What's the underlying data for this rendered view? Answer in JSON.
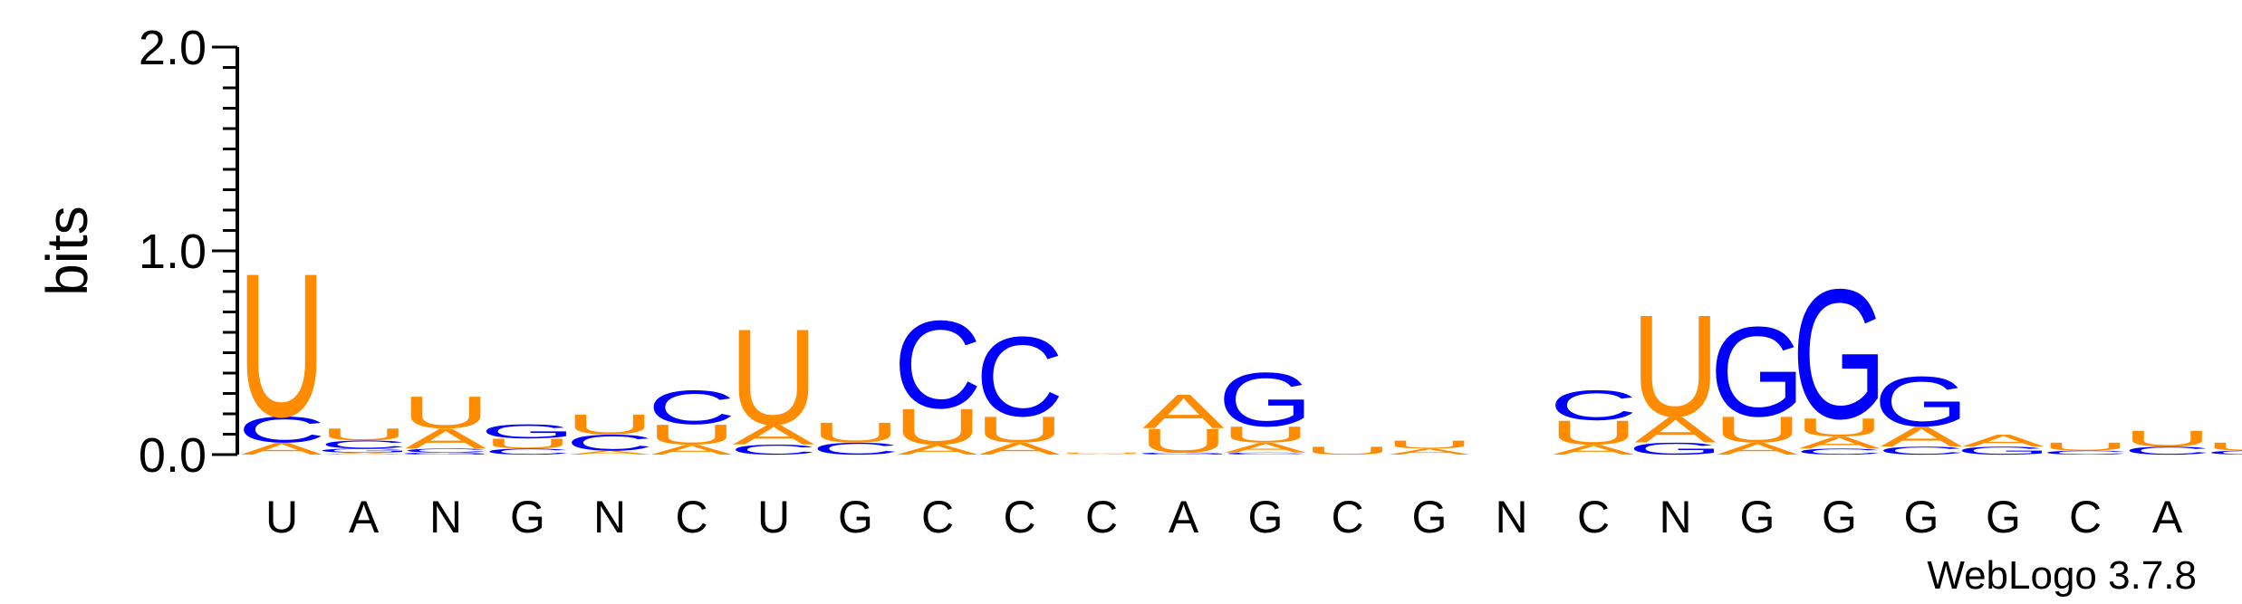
{
  "chart_data": {
    "type": "sequence-logo",
    "ylabel": "bits",
    "ylim": [
      0.0,
      2.0
    ],
    "yticks": [
      "0.0",
      "1.0",
      "2.0"
    ],
    "credit": "WebLogo 3.7.8",
    "colors": {
      "U": "#ff8c00",
      "A": "#ff8c00",
      "C": "#0000ff",
      "G": "#0000ff"
    },
    "positions": [
      {
        "label": "U",
        "stack": [
          {
            "letter": "A",
            "h": 0.06
          },
          {
            "letter": "C",
            "h": 0.13
          },
          {
            "letter": "U",
            "h": 0.72
          }
        ]
      },
      {
        "label": "A",
        "stack": [
          {
            "letter": "A",
            "h": 0.01
          },
          {
            "letter": "G",
            "h": 0.02
          },
          {
            "letter": "C",
            "h": 0.04
          },
          {
            "letter": "U",
            "h": 0.06
          }
        ]
      },
      {
        "label": "N",
        "stack": [
          {
            "letter": "G",
            "h": 0.01
          },
          {
            "letter": "C",
            "h": 0.02
          },
          {
            "letter": "A",
            "h": 0.1
          },
          {
            "letter": "U",
            "h": 0.16
          }
        ]
      },
      {
        "label": "G",
        "stack": [
          {
            "letter": "C",
            "h": 0.03
          },
          {
            "letter": "U",
            "h": 0.05
          },
          {
            "letter": "G",
            "h": 0.07
          }
        ]
      },
      {
        "label": "N",
        "stack": [
          {
            "letter": "A",
            "h": 0.02
          },
          {
            "letter": "C",
            "h": 0.08
          },
          {
            "letter": "U",
            "h": 0.1
          }
        ]
      },
      {
        "label": "C",
        "stack": [
          {
            "letter": "A",
            "h": 0.05
          },
          {
            "letter": "U",
            "h": 0.1
          },
          {
            "letter": "C",
            "h": 0.17
          }
        ]
      },
      {
        "label": "U",
        "stack": [
          {
            "letter": "C",
            "h": 0.05
          },
          {
            "letter": "A",
            "h": 0.1
          },
          {
            "letter": "U",
            "h": 0.48
          }
        ]
      },
      {
        "label": "G",
        "stack": [
          {
            "letter": "C",
            "h": 0.06
          },
          {
            "letter": "U",
            "h": 0.1
          }
        ]
      },
      {
        "label": "C",
        "stack": [
          {
            "letter": "A",
            "h": 0.05
          },
          {
            "letter": "U",
            "h": 0.18
          },
          {
            "letter": "C",
            "h": 0.44
          }
        ]
      },
      {
        "label": "C",
        "stack": [
          {
            "letter": "A",
            "h": 0.06
          },
          {
            "letter": "U",
            "h": 0.13
          },
          {
            "letter": "C",
            "h": 0.4
          }
        ]
      },
      {
        "label": "C",
        "stack": [
          {
            "letter": "A",
            "h": 0.005
          },
          {
            "letter": "U",
            "h": 0.005
          }
        ]
      },
      {
        "label": "A",
        "stack": [
          {
            "letter": "G",
            "h": 0.01
          },
          {
            "letter": "U",
            "h": 0.12
          },
          {
            "letter": "A",
            "h": 0.17
          }
        ]
      },
      {
        "label": "G",
        "stack": [
          {
            "letter": "C",
            "h": 0.01
          },
          {
            "letter": "A",
            "h": 0.05
          },
          {
            "letter": "U",
            "h": 0.08
          },
          {
            "letter": "G",
            "h": 0.27
          }
        ]
      },
      {
        "label": "C",
        "stack": [
          {
            "letter": "U",
            "h": 0.04
          }
        ]
      },
      {
        "label": "G",
        "stack": [
          {
            "letter": "A",
            "h": 0.03
          },
          {
            "letter": "U",
            "h": 0.04
          }
        ]
      },
      {
        "label": "N",
        "stack": []
      },
      {
        "label": "C",
        "stack": [
          {
            "letter": "A",
            "h": 0.05
          },
          {
            "letter": "U",
            "h": 0.12
          },
          {
            "letter": "C",
            "h": 0.15
          }
        ]
      },
      {
        "label": "N",
        "stack": [
          {
            "letter": "G",
            "h": 0.06
          },
          {
            "letter": "A",
            "h": 0.13
          },
          {
            "letter": "U",
            "h": 0.51
          }
        ]
      },
      {
        "label": "G",
        "stack": [
          {
            "letter": "A",
            "h": 0.06
          },
          {
            "letter": "U",
            "h": 0.13
          },
          {
            "letter": "G",
            "h": 0.45
          }
        ]
      },
      {
        "label": "G",
        "stack": [
          {
            "letter": "C",
            "h": 0.03
          },
          {
            "letter": "A",
            "h": 0.06
          },
          {
            "letter": "U",
            "h": 0.09
          },
          {
            "letter": "G",
            "h": 0.65
          }
        ]
      },
      {
        "label": "G",
        "stack": [
          {
            "letter": "C",
            "h": 0.04
          },
          {
            "letter": "A",
            "h": 0.1
          },
          {
            "letter": "G",
            "h": 0.25
          }
        ]
      },
      {
        "label": "G",
        "stack": [
          {
            "letter": "G",
            "h": 0.04
          },
          {
            "letter": "A",
            "h": 0.06
          }
        ]
      },
      {
        "label": "C",
        "stack": [
          {
            "letter": "C",
            "h": 0.02
          },
          {
            "letter": "U",
            "h": 0.04
          }
        ]
      },
      {
        "label": "A",
        "stack": [
          {
            "letter": "C",
            "h": 0.04
          },
          {
            "letter": "U",
            "h": 0.08
          }
        ]
      },
      {
        "label": "",
        "stack": [
          {
            "letter": "C",
            "h": 0.02
          },
          {
            "letter": "U",
            "h": 0.04
          }
        ]
      }
    ]
  }
}
